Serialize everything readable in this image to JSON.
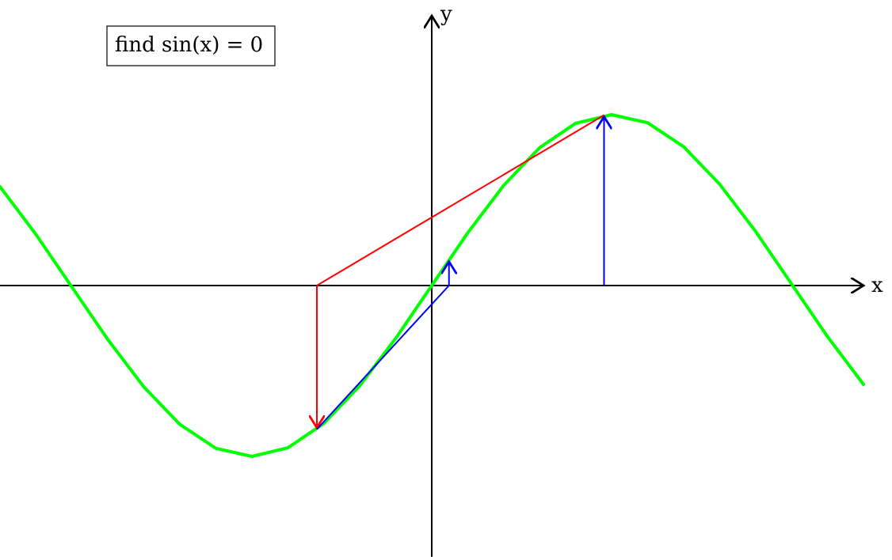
{
  "title": "find sin(x) = 0",
  "axes": {
    "x_label": "x",
    "y_label": "y"
  },
  "function": "sin(x)",
  "iteration": {
    "start_x": 1.5,
    "step2_x": -1.0,
    "step3_x": 0.15
  },
  "colors": {
    "curve": "#00ff00",
    "secant": "#ff0000",
    "projection": "#0000ff",
    "axis": "#000000"
  }
}
